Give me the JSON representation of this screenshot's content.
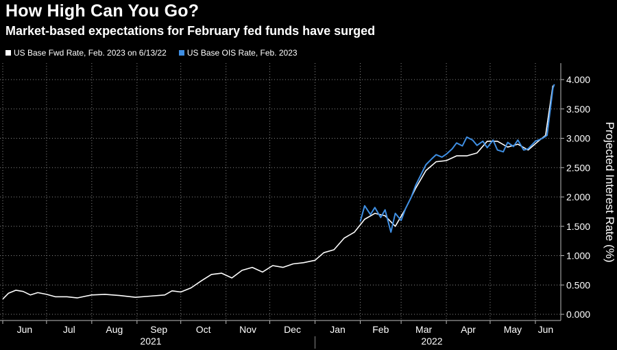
{
  "title": "How High Can You Go?",
  "subtitle": "Market-based expectations for February fed funds have surged",
  "legend": [
    {
      "label": "US Base Fwd Rate, Feb. 2023 on 6/13/22",
      "color": "#ffffff"
    },
    {
      "label": "US Base OIS Rate, Feb. 2023",
      "color": "#3f8fe3"
    }
  ],
  "chart_data": {
    "type": "line",
    "title": "How High Can You Go?",
    "subtitle": "Market-based expectations for February fed funds have surged",
    "ylabel": "Projected Interest Rate (%)",
    "xlabel": "",
    "ylim": [
      0,
      4.0
    ],
    "yticks": [
      "0.000",
      "0.500",
      "1.000",
      "1.500",
      "2.000",
      "2.500",
      "3.000",
      "3.500",
      "4.000"
    ],
    "ytick_values": [
      0,
      0.5,
      1.0,
      1.5,
      2.0,
      2.5,
      3.0,
      3.5,
      4.0
    ],
    "xlim": [
      "2021-06-01",
      "2022-06-17"
    ],
    "month_ticks": [
      {
        "label": "Jun",
        "date": "2021-06-01"
      },
      {
        "label": "Jul",
        "date": "2021-07-01"
      },
      {
        "label": "Aug",
        "date": "2021-08-01"
      },
      {
        "label": "Sep",
        "date": "2021-09-01"
      },
      {
        "label": "Oct",
        "date": "2021-10-01"
      },
      {
        "label": "Nov",
        "date": "2021-11-01"
      },
      {
        "label": "Dec",
        "date": "2021-12-01"
      },
      {
        "label": "Jan",
        "date": "2022-01-01"
      },
      {
        "label": "Feb",
        "date": "2022-02-01"
      },
      {
        "label": "Mar",
        "date": "2022-03-01"
      },
      {
        "label": "Apr",
        "date": "2022-04-01"
      },
      {
        "label": "May",
        "date": "2022-05-01"
      },
      {
        "label": "Jun",
        "date": "2022-06-01"
      }
    ],
    "year_labels": [
      "2021",
      "2022"
    ],
    "grid": true,
    "legend_position": "top-left",
    "series": [
      {
        "name": "US Base Fwd Rate, Feb. 2023 on 6/13/22",
        "color": "#ffffff",
        "x": [
          "2021-06-01",
          "2021-06-05",
          "2021-06-10",
          "2021-06-15",
          "2021-06-20",
          "2021-06-25",
          "2021-07-01",
          "2021-07-07",
          "2021-07-15",
          "2021-07-22",
          "2021-08-01",
          "2021-08-10",
          "2021-08-20",
          "2021-08-31",
          "2021-09-10",
          "2021-09-20",
          "2021-09-25",
          "2021-10-01",
          "2021-10-08",
          "2021-10-15",
          "2021-10-22",
          "2021-10-29",
          "2021-11-05",
          "2021-11-12",
          "2021-11-19",
          "2021-11-26",
          "2021-12-03",
          "2021-12-10",
          "2021-12-17",
          "2021-12-24",
          "2022-01-01",
          "2022-01-07",
          "2022-01-14",
          "2022-01-21",
          "2022-01-28",
          "2022-02-04",
          "2022-02-11",
          "2022-02-18",
          "2022-02-25",
          "2022-03-04",
          "2022-03-11",
          "2022-03-18",
          "2022-03-25",
          "2022-04-01",
          "2022-04-08",
          "2022-04-15",
          "2022-04-22",
          "2022-04-29",
          "2022-05-06",
          "2022-05-13",
          "2022-05-20",
          "2022-05-27",
          "2022-06-03",
          "2022-06-08",
          "2022-06-13"
        ],
        "y": [
          0.26,
          0.36,
          0.41,
          0.39,
          0.33,
          0.37,
          0.34,
          0.3,
          0.3,
          0.28,
          0.33,
          0.34,
          0.32,
          0.29,
          0.31,
          0.33,
          0.4,
          0.38,
          0.45,
          0.57,
          0.68,
          0.7,
          0.62,
          0.75,
          0.8,
          0.72,
          0.83,
          0.8,
          0.86,
          0.88,
          0.92,
          1.05,
          1.1,
          1.3,
          1.4,
          1.62,
          1.72,
          1.68,
          1.5,
          1.8,
          2.15,
          2.45,
          2.6,
          2.62,
          2.7,
          2.7,
          2.75,
          2.95,
          2.95,
          2.85,
          2.9,
          2.8,
          2.95,
          3.05,
          3.9
        ]
      },
      {
        "name": "US Base OIS Rate, Feb. 2023",
        "color": "#3f8fe3",
        "x": [
          "2022-02-01",
          "2022-02-04",
          "2022-02-08",
          "2022-02-11",
          "2022-02-15",
          "2022-02-18",
          "2022-02-22",
          "2022-02-25",
          "2022-03-01",
          "2022-03-04",
          "2022-03-08",
          "2022-03-11",
          "2022-03-15",
          "2022-03-18",
          "2022-03-22",
          "2022-03-25",
          "2022-03-29",
          "2022-04-01",
          "2022-04-05",
          "2022-04-08",
          "2022-04-12",
          "2022-04-15",
          "2022-04-19",
          "2022-04-22",
          "2022-04-26",
          "2022-04-29",
          "2022-05-03",
          "2022-05-06",
          "2022-05-10",
          "2022-05-13",
          "2022-05-17",
          "2022-05-20",
          "2022-05-24",
          "2022-05-27",
          "2022-06-01",
          "2022-06-06",
          "2022-06-09",
          "2022-06-13",
          "2022-06-14"
        ],
        "y": [
          1.58,
          1.85,
          1.7,
          1.82,
          1.65,
          1.78,
          1.4,
          1.72,
          1.6,
          1.8,
          2.0,
          2.2,
          2.4,
          2.55,
          2.65,
          2.72,
          2.68,
          2.73,
          2.82,
          2.92,
          2.87,
          3.02,
          2.97,
          2.88,
          2.95,
          2.84,
          2.97,
          2.8,
          2.77,
          2.93,
          2.86,
          2.97,
          2.8,
          2.82,
          2.95,
          3.0,
          3.05,
          3.85,
          3.92
        ]
      }
    ]
  }
}
